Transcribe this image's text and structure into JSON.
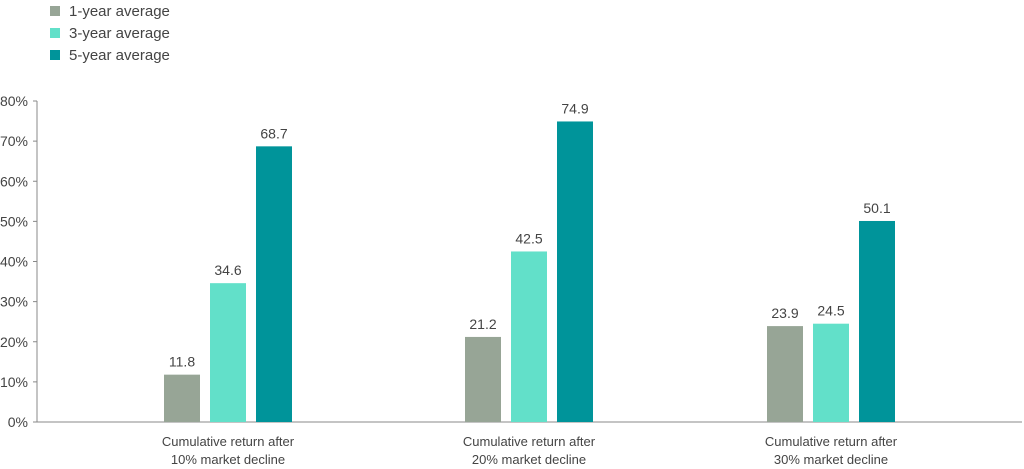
{
  "chart_data": {
    "type": "bar",
    "title": "",
    "xlabel": "",
    "ylabel": "",
    "ylim": [
      0,
      80
    ],
    "yticks": [
      0,
      10,
      20,
      30,
      40,
      50,
      60,
      70,
      80
    ],
    "ytick_suffix": "%",
    "categories": [
      [
        "Cumulative return after",
        "10% market decline"
      ],
      [
        "Cumulative return after",
        "20% market decline"
      ],
      [
        "Cumulative return after",
        "30% market decline"
      ]
    ],
    "series": [
      {
        "name": "1-year average",
        "color": "#97a596",
        "values": [
          11.8,
          21.2,
          23.9
        ]
      },
      {
        "name": "3-year average",
        "color": "#62e0c9",
        "values": [
          34.6,
          42.5,
          24.5
        ]
      },
      {
        "name": "5-year average",
        "color": "#00949a",
        "values": [
          68.7,
          74.9,
          50.1
        ]
      }
    ],
    "data_labels": [
      [
        "11.8",
        "21.2",
        "23.9"
      ],
      [
        "34.6",
        "42.5",
        "24.5"
      ],
      [
        "68.7",
        "74.9",
        "50.1"
      ]
    ],
    "legend_position": "top-left",
    "grid": false
  }
}
